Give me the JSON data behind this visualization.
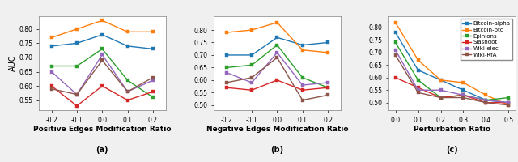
{
  "subplot_a": {
    "xlabel": "Positive Edges Modification Ratio",
    "label": "(a)",
    "x": [
      -0.2,
      -0.1,
      0.0,
      0.1,
      0.2
    ],
    "xlim": [
      -0.25,
      0.25
    ],
    "ylim": [
      0.515,
      0.845
    ],
    "yticks": [
      0.55,
      0.6,
      0.65,
      0.7,
      0.75,
      0.8
    ],
    "xtick_labels": [
      "-0.2",
      "-0.1",
      "0.0",
      "0.1",
      "0.2"
    ],
    "series": {
      "Bitcoin-alpha": [
        0.74,
        0.75,
        0.78,
        0.74,
        0.73
      ],
      "Bitcoin-otc": [
        0.77,
        0.8,
        0.83,
        0.79,
        0.79
      ],
      "Epinions": [
        0.67,
        0.67,
        0.73,
        0.62,
        0.56
      ],
      "Slashdot": [
        0.6,
        0.53,
        0.6,
        0.55,
        0.58
      ],
      "Wiki-elec": [
        0.65,
        0.57,
        0.71,
        0.58,
        0.62
      ],
      "Wiki-RfA": [
        0.59,
        0.57,
        0.69,
        0.58,
        0.63
      ]
    }
  },
  "subplot_b": {
    "xlabel": "Negative Edges Modification Ratio",
    "label": "(b)",
    "x": [
      -0.2,
      -0.1,
      0.0,
      0.1,
      0.2
    ],
    "xlim": [
      -0.25,
      0.25
    ],
    "ylim": [
      0.48,
      0.855
    ],
    "yticks": [
      0.5,
      0.55,
      0.6,
      0.65,
      0.7,
      0.75,
      0.8
    ],
    "xtick_labels": [
      "-0.2",
      "-0.1",
      "0.0",
      "0.1",
      "0.2"
    ],
    "series": {
      "Bitcoin-alpha": [
        0.7,
        0.7,
        0.77,
        0.74,
        0.75
      ],
      "Bitcoin-otc": [
        0.79,
        0.8,
        0.83,
        0.72,
        0.71
      ],
      "Epinions": [
        0.65,
        0.66,
        0.74,
        0.61,
        0.57
      ],
      "Slashdot": [
        0.57,
        0.56,
        0.6,
        0.56,
        0.57
      ],
      "Wiki-elec": [
        0.63,
        0.59,
        0.71,
        0.58,
        0.59
      ],
      "Wiki-RfA": [
        0.59,
        0.61,
        0.69,
        0.52,
        0.54
      ]
    }
  },
  "subplot_c": {
    "xlabel": "Perturbation Ratio",
    "label": "(c)",
    "x": [
      0.0,
      0.1,
      0.2,
      0.3,
      0.4,
      0.5
    ],
    "xlim": [
      -0.03,
      0.53
    ],
    "ylim": [
      0.47,
      0.845
    ],
    "yticks": [
      0.5,
      0.55,
      0.6,
      0.65,
      0.7,
      0.75,
      0.8
    ],
    "xtick_labels": [
      "0.0",
      "0.1",
      "0.2",
      "0.3",
      "0.4",
      "0.5"
    ],
    "series": {
      "Bitcoin-alpha": [
        0.78,
        0.63,
        0.59,
        0.55,
        0.51,
        0.5
      ],
      "Bitcoin-otc": [
        0.82,
        0.67,
        0.59,
        0.58,
        0.53,
        0.49
      ],
      "Epinions": [
        0.74,
        0.59,
        0.52,
        0.53,
        0.51,
        0.52
      ],
      "Slashdot": [
        0.6,
        0.56,
        0.52,
        0.53,
        0.5,
        0.5
      ],
      "Wiki-elec": [
        0.71,
        0.55,
        0.55,
        0.53,
        0.51,
        0.5
      ],
      "Wiki-RfA": [
        0.69,
        0.54,
        0.52,
        0.52,
        0.5,
        0.49
      ]
    }
  },
  "colors": {
    "Bitcoin-alpha": "#1f77b4",
    "Bitcoin-otc": "#ff7f0e",
    "Epinions": "#2ca02c",
    "Slashdot": "#d62728",
    "Wiki-elec": "#9467bd",
    "Wiki-RfA": "#8c564b"
  },
  "ylabel": "AUC",
  "marker": "s",
  "markersize": 3.0,
  "linewidth": 1.0
}
